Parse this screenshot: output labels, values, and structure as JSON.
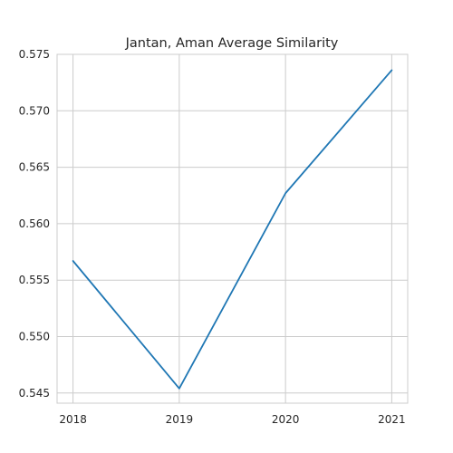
{
  "chart_data": {
    "type": "line",
    "title": "Jantan, Aman Average Similarity",
    "xlabel": "",
    "ylabel": "",
    "x": [
      "2018",
      "2019",
      "2020",
      "2021"
    ],
    "series": [
      {
        "values": [
          0.5567,
          0.5454,
          0.5627,
          0.5736
        ],
        "color": "#1f77b4"
      }
    ],
    "xlim": [
      2017.85,
      2021.15
    ],
    "ylim": [
      0.5441,
      0.575
    ],
    "yticks": [
      "0.545",
      "0.550",
      "0.555",
      "0.560",
      "0.565",
      "0.570",
      "0.575"
    ],
    "grid": true,
    "legend": "none"
  }
}
